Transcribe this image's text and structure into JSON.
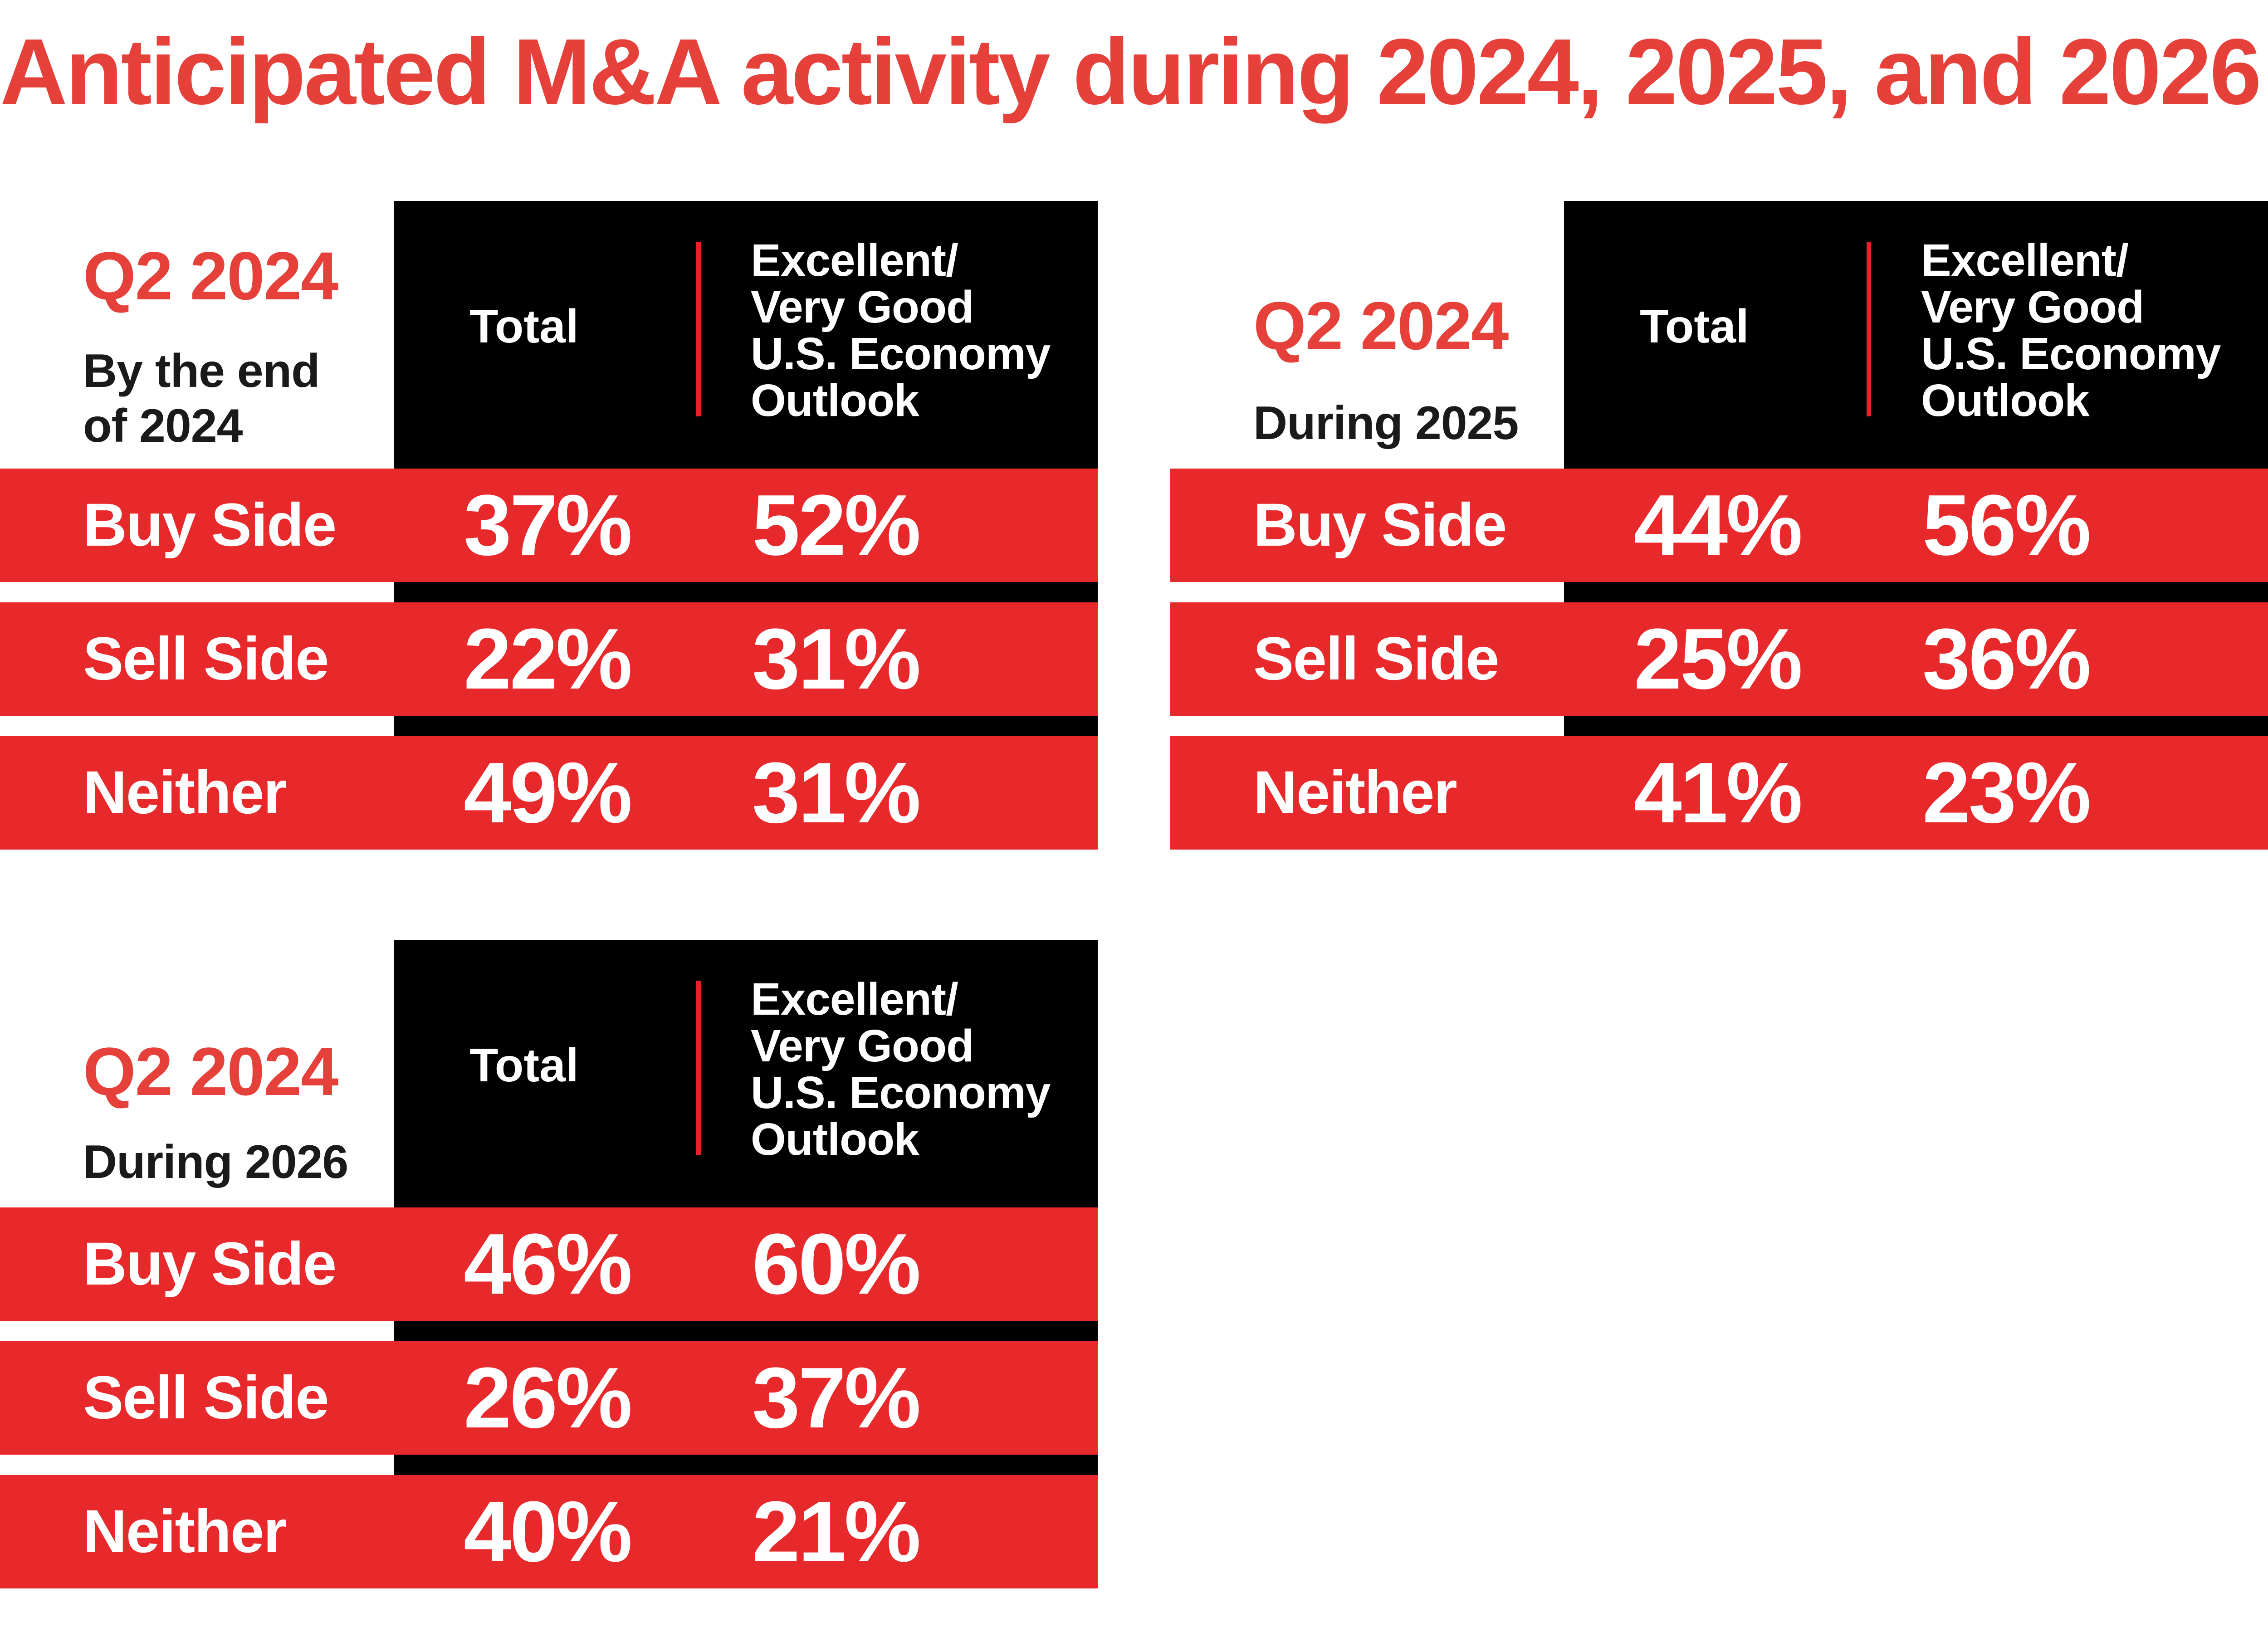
{
  "title": "Anticipated M&A activity during 2024, 2025, and 2026",
  "colors": {
    "accent_red": "#e8292c",
    "title_red": "#e5413a",
    "header_black": "#000000"
  },
  "columns": {
    "total": "Total",
    "outlook": "Excellent/\nVery Good\nU.S. Economy\nOutlook"
  },
  "row_labels": [
    "Buy Side",
    "Sell Side",
    "Neither"
  ],
  "panels": [
    {
      "period": "Q2 2024",
      "subtitle": "By the end\nof 2024",
      "rows": [
        {
          "label": "Buy Side",
          "total": "37%",
          "outlook": "52%"
        },
        {
          "label": "Sell Side",
          "total": "22%",
          "outlook": "31%"
        },
        {
          "label": "Neither",
          "total": "49%",
          "outlook": "31%"
        }
      ]
    },
    {
      "period": "Q2 2024",
      "subtitle": "During 2025",
      "rows": [
        {
          "label": "Buy Side",
          "total": "44%",
          "outlook": "56%"
        },
        {
          "label": "Sell Side",
          "total": "25%",
          "outlook": "36%"
        },
        {
          "label": "Neither",
          "total": "41%",
          "outlook": "23%"
        }
      ]
    },
    {
      "period": "Q2 2024",
      "subtitle": "During 2026",
      "rows": [
        {
          "label": "Buy Side",
          "total": "46%",
          "outlook": "60%"
        },
        {
          "label": "Sell Side",
          "total": "26%",
          "outlook": "37%"
        },
        {
          "label": "Neither",
          "total": "40%",
          "outlook": "21%"
        }
      ]
    }
  ],
  "chart_data": [
    {
      "type": "table",
      "title": "Q2 2024",
      "subtitle": "By the end of 2024",
      "columns": [
        "Total",
        "Excellent/Very Good U.S. Economy Outlook"
      ],
      "categories": [
        "Buy Side",
        "Sell Side",
        "Neither"
      ],
      "series": [
        {
          "name": "Total",
          "values": [
            37,
            22,
            49
          ]
        },
        {
          "name": "Excellent/Very Good U.S. Economy Outlook",
          "values": [
            52,
            31,
            31
          ]
        }
      ]
    },
    {
      "type": "table",
      "title": "Q2 2024",
      "subtitle": "During 2025",
      "columns": [
        "Total",
        "Excellent/Very Good U.S. Economy Outlook"
      ],
      "categories": [
        "Buy Side",
        "Sell Side",
        "Neither"
      ],
      "series": [
        {
          "name": "Total",
          "values": [
            44,
            25,
            41
          ]
        },
        {
          "name": "Excellent/Very Good U.S. Economy Outlook",
          "values": [
            56,
            36,
            23
          ]
        }
      ]
    },
    {
      "type": "table",
      "title": "Q2 2024",
      "subtitle": "During 2026",
      "columns": [
        "Total",
        "Excellent/Very Good U.S. Economy Outlook"
      ],
      "categories": [
        "Buy Side",
        "Sell Side",
        "Neither"
      ],
      "series": [
        {
          "name": "Total",
          "values": [
            46,
            26,
            40
          ]
        },
        {
          "name": "Excellent/Very Good U.S. Economy Outlook",
          "values": [
            60,
            37,
            21
          ]
        }
      ]
    }
  ]
}
